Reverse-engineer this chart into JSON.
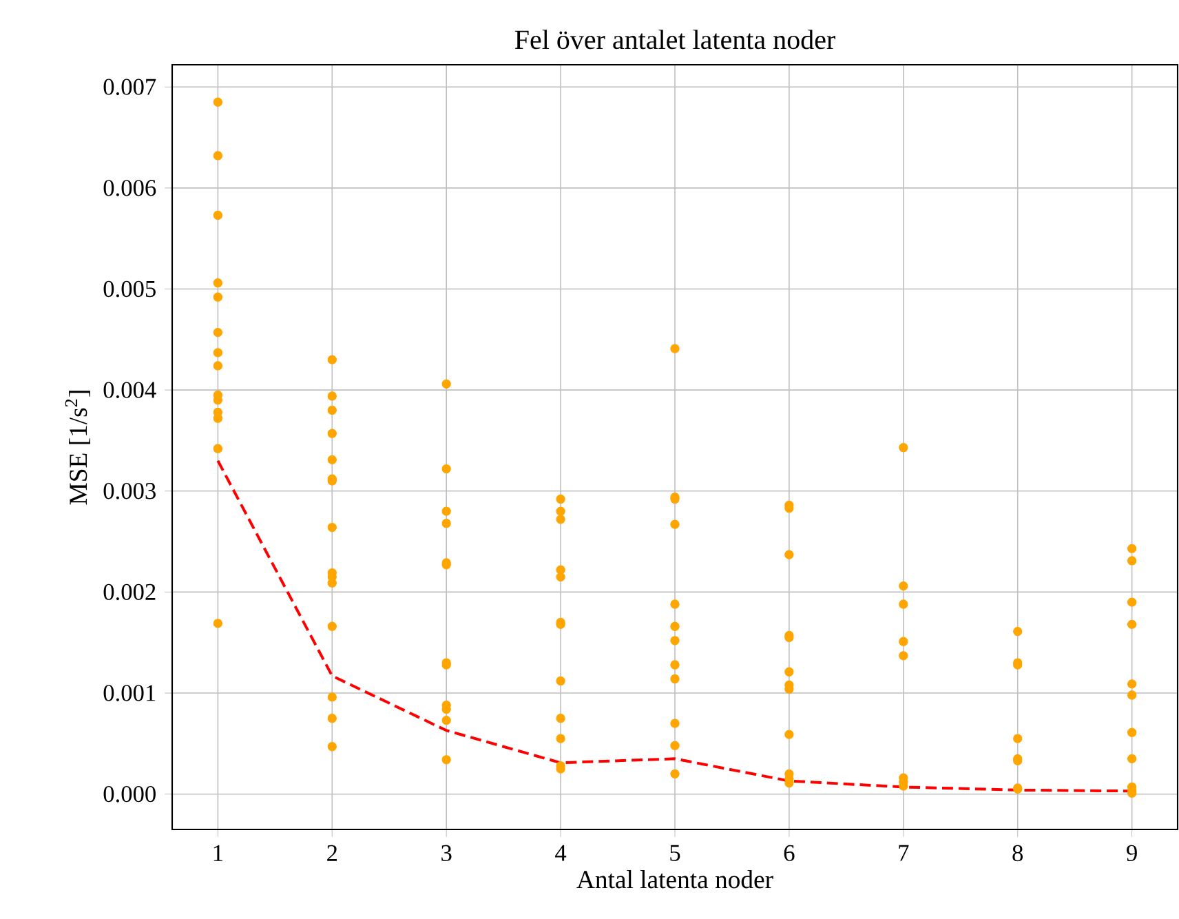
{
  "chart_data": {
    "type": "scatter",
    "title": "Fel över antalet latenta noder",
    "xlabel": "Antal latenta noder",
    "ylabel": "MSE [1/s$^{2}$]",
    "xlim": [
      0.6,
      9.4
    ],
    "ylim": [
      -0.00035,
      0.00722
    ],
    "xticks": [
      1,
      2,
      3,
      4,
      5,
      6,
      7,
      8,
      9
    ],
    "yticks": [
      {
        "value": 0,
        "label": "0.000"
      },
      {
        "value": 0.001,
        "label": "0.001"
      },
      {
        "value": 0.002,
        "label": "0.002"
      },
      {
        "value": 0.003,
        "label": "0.003"
      },
      {
        "value": 0.004,
        "label": "0.004"
      },
      {
        "value": 0.005,
        "label": "0.005"
      },
      {
        "value": 0.006,
        "label": "0.006"
      },
      {
        "value": 0.007,
        "label": "0.007"
      }
    ],
    "grid": true,
    "series": [
      {
        "color": "#ffa500",
        "marker": "circle",
        "x": [
          1,
          1,
          1,
          1,
          1,
          1,
          1,
          1,
          1,
          1,
          1,
          1,
          1,
          1,
          2,
          2,
          2,
          2,
          2,
          2,
          2,
          2,
          2,
          2,
          2,
          2,
          2,
          2,
          2,
          3,
          3,
          3,
          3,
          3,
          3,
          3,
          3,
          3,
          3,
          3,
          3,
          4,
          4,
          4,
          4,
          4,
          4,
          4,
          4,
          4,
          4,
          4,
          4,
          5,
          5,
          5,
          5,
          5,
          5,
          5,
          5,
          5,
          5,
          5,
          5,
          6,
          6,
          6,
          6,
          6,
          6,
          6,
          6,
          6,
          6,
          6,
          6,
          7,
          7,
          7,
          7,
          7,
          7,
          7,
          7,
          8,
          8,
          8,
          8,
          8,
          8,
          8,
          8,
          9,
          9,
          9,
          9,
          9,
          9,
          9,
          9,
          9,
          9,
          9
        ],
        "values": [
          0.00685,
          0.00632,
          0.00573,
          0.00506,
          0.00492,
          0.00457,
          0.00437,
          0.00424,
          0.00395,
          0.0039,
          0.00378,
          0.00372,
          0.00342,
          0.00169,
          0.0043,
          0.00394,
          0.0038,
          0.00357,
          0.00331,
          0.00312,
          0.0031,
          0.00264,
          0.00219,
          0.00215,
          0.00209,
          0.00166,
          0.00096,
          0.00075,
          0.00047,
          0.00406,
          0.00322,
          0.0028,
          0.00268,
          0.00229,
          0.00227,
          0.0013,
          0.00128,
          0.00088,
          0.00084,
          0.00073,
          0.00034,
          0.00292,
          0.0028,
          0.00272,
          0.00222,
          0.00215,
          0.0017,
          0.00168,
          0.00112,
          0.00075,
          0.00055,
          0.00028,
          0.00025,
          0.00441,
          0.00294,
          0.00292,
          0.00267,
          0.00188,
          0.00166,
          0.00152,
          0.00128,
          0.00114,
          0.0007,
          0.00048,
          0.0002,
          0.00286,
          0.00283,
          0.00237,
          0.00157,
          0.00155,
          0.00121,
          0.00108,
          0.00104,
          0.00059,
          0.0002,
          0.00015,
          0.00011,
          0.00343,
          0.00206,
          0.00188,
          0.00151,
          0.00137,
          0.00016,
          0.00012,
          8e-05,
          0.00161,
          0.0013,
          0.00128,
          0.00055,
          0.00035,
          0.00033,
          6e-05,
          5e-05,
          0.00243,
          0.00231,
          0.0019,
          0.00168,
          0.00109,
          0.00098,
          0.00061,
          0.00035,
          7e-05,
          3e-05,
          1e-05
        ]
      },
      {
        "type": "line",
        "color": "#ff0000",
        "marker": "none",
        "line_style": "dashed",
        "x": [
          1,
          2,
          3,
          4,
          5,
          6,
          7,
          8,
          9
        ],
        "values": [
          0.0033,
          0.00117,
          0.00063,
          0.00031,
          0.00035,
          0.00013,
          7e-05,
          4e-05,
          3e-05
        ]
      }
    ]
  }
}
